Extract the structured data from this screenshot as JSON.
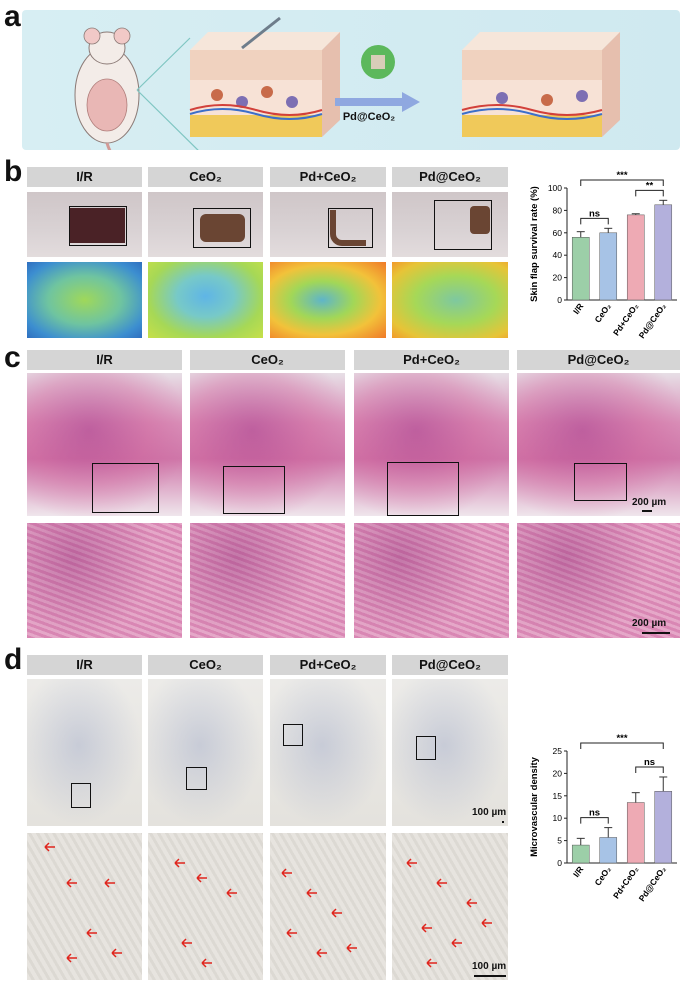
{
  "panels": {
    "a": "a",
    "b": "b",
    "c": "c",
    "d": "d"
  },
  "panel_a": {
    "treatment_label": "Pd@CeO₂"
  },
  "groups": [
    "I/R",
    "CeO₂",
    "Pd+CeO₂",
    "Pd@CeO₂"
  ],
  "scalebars": {
    "c_top": "200 µm",
    "c_bottom": "200 µm",
    "d_top": "100 µm",
    "d_bottom": "100 µm"
  },
  "chart_data": [
    {
      "type": "bar",
      "panel": "b",
      "categories": [
        "I/R",
        "CeO₂",
        "Pd+CeO₂",
        "Pd@CeO₂"
      ],
      "values": [
        56,
        60,
        76,
        85
      ],
      "errors": [
        5,
        4,
        1,
        4
      ],
      "ylabel": "Skin flap survival rate (%)",
      "ylim": [
        0,
        100
      ],
      "yticks": [
        "0",
        "20",
        "40",
        "60",
        "80",
        "100"
      ],
      "colors": [
        "#9ccfa8",
        "#a7c3e6",
        "#eeaab4",
        "#b3b0dc"
      ],
      "significance": [
        {
          "text": "ns",
          "from": 0,
          "to": 1
        },
        {
          "text": "**",
          "from": 2,
          "to": 3
        },
        {
          "text": "***",
          "from": 0,
          "to": 3
        }
      ]
    },
    {
      "type": "bar",
      "panel": "d",
      "categories": [
        "I/R",
        "CeO₂",
        "Pd+CeO₂",
        "Pd@CeO₂"
      ],
      "values": [
        4,
        5.7,
        13.5,
        16
      ],
      "errors": [
        1.5,
        2.2,
        2.2,
        3.2
      ],
      "ylabel": "Microvascular density",
      "ylim": [
        0,
        25
      ],
      "yticks": [
        "0",
        "5",
        "10",
        "15",
        "20",
        "25"
      ],
      "colors": [
        "#9ccfa8",
        "#a7c3e6",
        "#eeaab4",
        "#b3b0dc"
      ],
      "significance": [
        {
          "text": "ns",
          "from": 0,
          "to": 1
        },
        {
          "text": "ns",
          "from": 2,
          "to": 3
        },
        {
          "text": "***",
          "from": 0,
          "to": 3
        }
      ]
    }
  ]
}
